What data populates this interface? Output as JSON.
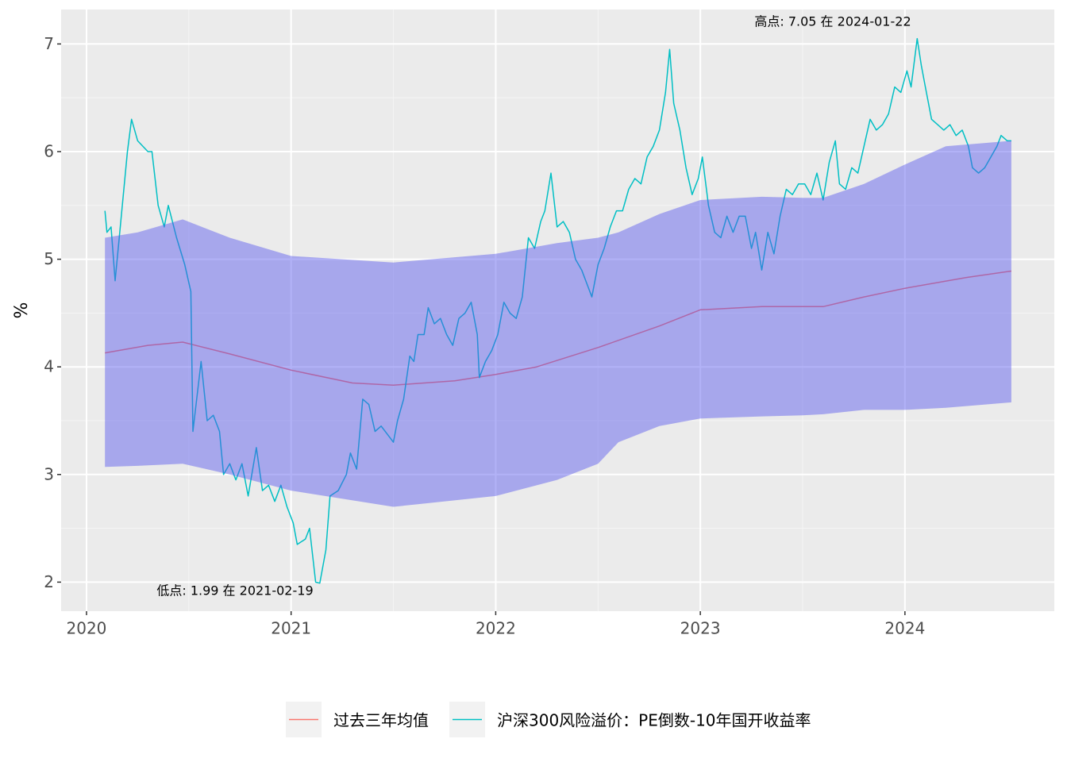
{
  "chart_data": {
    "type": "line",
    "ylabel": "%",
    "xlim": [
      2019.876,
      2024.73
    ],
    "ylim": [
      1.73,
      7.32
    ],
    "xticks": [
      2020,
      2021,
      2022,
      2023,
      2024
    ],
    "yticks": [
      2,
      3,
      4,
      5,
      6,
      7
    ],
    "grid": true,
    "legend": "bottom",
    "annotations": [
      "高点: 7.05 在 2024-01-22",
      "低点: 1.99 在 2021-02-19"
    ],
    "band": {
      "color": "#5555ee",
      "x": [
        2020.09,
        2020.25,
        2020.47,
        2020.7,
        2021.0,
        2021.5,
        2022.0,
        2022.3,
        2022.5,
        2022.6,
        2022.8,
        2023.0,
        2023.3,
        2023.5,
        2023.6,
        2023.8,
        2024.0,
        2024.2,
        2024.52
      ],
      "upper": [
        5.2,
        5.25,
        5.37,
        5.2,
        5.03,
        4.97,
        5.05,
        5.15,
        5.2,
        5.25,
        5.42,
        5.55,
        5.58,
        5.57,
        5.57,
        5.7,
        5.88,
        6.05,
        6.1
      ],
      "lower": [
        3.07,
        3.08,
        3.1,
        3.0,
        2.85,
        2.7,
        2.8,
        2.95,
        3.1,
        3.3,
        3.45,
        3.52,
        3.54,
        3.55,
        3.56,
        3.6,
        3.6,
        3.62,
        3.67
      ]
    },
    "series": [
      {
        "name": "过去三年均值",
        "color": "#F8766D",
        "x": [
          2020.09,
          2020.3,
          2020.47,
          2020.7,
          2021.0,
          2021.3,
          2021.5,
          2021.8,
          2022.0,
          2022.2,
          2022.5,
          2022.8,
          2023.0,
          2023.3,
          2023.6,
          2023.8,
          2024.0,
          2024.3,
          2024.52
        ],
        "values": [
          4.13,
          4.2,
          4.23,
          4.12,
          3.97,
          3.85,
          3.83,
          3.87,
          3.93,
          4.0,
          4.18,
          4.38,
          4.53,
          4.56,
          4.56,
          4.65,
          4.73,
          4.83,
          4.89
        ]
      },
      {
        "name": "沪深300风险溢价：PE倒数-10年国开收益率",
        "color": "#00BFC4",
        "x": [
          2020.09,
          2020.1,
          2020.12,
          2020.14,
          2020.16,
          2020.2,
          2020.22,
          2020.25,
          2020.3,
          2020.32,
          2020.35,
          2020.38,
          2020.4,
          2020.44,
          2020.48,
          2020.51,
          2020.52,
          2020.56,
          2020.59,
          2020.62,
          2020.65,
          2020.67,
          2020.7,
          2020.73,
          2020.76,
          2020.79,
          2020.83,
          2020.86,
          2020.89,
          2020.92,
          2020.95,
          2020.98,
          2021.01,
          2021.03,
          2021.07,
          2021.09,
          2021.12,
          2021.14,
          2021.17,
          2021.19,
          2021.23,
          2021.27,
          2021.29,
          2021.32,
          2021.35,
          2021.38,
          2021.41,
          2021.44,
          2021.48,
          2021.5,
          2021.52,
          2021.55,
          2021.58,
          2021.6,
          2021.62,
          2021.65,
          2021.67,
          2021.7,
          2021.73,
          2021.76,
          2021.79,
          2021.82,
          2021.85,
          2021.88,
          2021.91,
          2021.92,
          2021.95,
          2021.98,
          2022.01,
          2022.04,
          2022.07,
          2022.1,
          2022.13,
          2022.16,
          2022.19,
          2022.22,
          2022.24,
          2022.27,
          2022.3,
          2022.33,
          2022.36,
          2022.39,
          2022.42,
          2022.45,
          2022.47,
          2022.5,
          2022.53,
          2022.56,
          2022.59,
          2022.62,
          2022.65,
          2022.68,
          2022.71,
          2022.74,
          2022.77,
          2022.8,
          2022.83,
          2022.85,
          2022.87,
          2022.9,
          2022.93,
          2022.96,
          2022.99,
          2023.01,
          2023.04,
          2023.07,
          2023.1,
          2023.13,
          2023.16,
          2023.19,
          2023.22,
          2023.25,
          2023.27,
          2023.3,
          2023.33,
          2023.36,
          2023.39,
          2023.42,
          2023.45,
          2023.48,
          2023.51,
          2023.54,
          2023.57,
          2023.6,
          2023.63,
          2023.66,
          2023.68,
          2023.71,
          2023.74,
          2023.77,
          2023.8,
          2023.83,
          2023.86,
          2023.89,
          2023.92,
          2023.95,
          2023.98,
          2024.01,
          2024.03,
          2024.06,
          2024.08,
          2024.1,
          2024.13,
          2024.16,
          2024.19,
          2024.22,
          2024.25,
          2024.28,
          2024.31,
          2024.33,
          2024.36,
          2024.39,
          2024.42,
          2024.45,
          2024.47,
          2024.5,
          2024.52
        ],
        "values": [
          5.45,
          5.25,
          5.3,
          4.8,
          5.2,
          6.0,
          6.3,
          6.1,
          6.0,
          6.0,
          5.5,
          5.3,
          5.5,
          5.2,
          4.95,
          4.7,
          3.4,
          4.05,
          3.5,
          3.55,
          3.4,
          3.0,
          3.1,
          2.95,
          3.1,
          2.8,
          3.25,
          2.85,
          2.9,
          2.75,
          2.9,
          2.7,
          2.55,
          2.35,
          2.4,
          2.5,
          2.0,
          1.99,
          2.3,
          2.8,
          2.85,
          3.0,
          3.2,
          3.05,
          3.7,
          3.65,
          3.4,
          3.45,
          3.35,
          3.3,
          3.5,
          3.7,
          4.1,
          4.05,
          4.3,
          4.3,
          4.55,
          4.4,
          4.45,
          4.3,
          4.2,
          4.45,
          4.5,
          4.6,
          4.3,
          3.9,
          4.05,
          4.15,
          4.3,
          4.6,
          4.5,
          4.45,
          4.65,
          5.2,
          5.1,
          5.35,
          5.45,
          5.8,
          5.3,
          5.35,
          5.25,
          5.0,
          4.9,
          4.75,
          4.65,
          4.95,
          5.1,
          5.3,
          5.45,
          5.45,
          5.65,
          5.75,
          5.7,
          5.95,
          6.05,
          6.2,
          6.55,
          6.95,
          6.45,
          6.2,
          5.85,
          5.6,
          5.75,
          5.95,
          5.5,
          5.25,
          5.2,
          5.4,
          5.25,
          5.4,
          5.4,
          5.1,
          5.25,
          4.9,
          5.25,
          5.05,
          5.4,
          5.65,
          5.6,
          5.7,
          5.7,
          5.6,
          5.8,
          5.55,
          5.9,
          6.1,
          5.7,
          5.65,
          5.85,
          5.8,
          6.05,
          6.3,
          6.2,
          6.25,
          6.35,
          6.6,
          6.55,
          6.75,
          6.6,
          7.05,
          6.8,
          6.6,
          6.3,
          6.25,
          6.2,
          6.25,
          6.15,
          6.2,
          6.05,
          5.85,
          5.8,
          5.85,
          5.95,
          6.05,
          6.15,
          6.1,
          6.1
        ]
      }
    ]
  }
}
